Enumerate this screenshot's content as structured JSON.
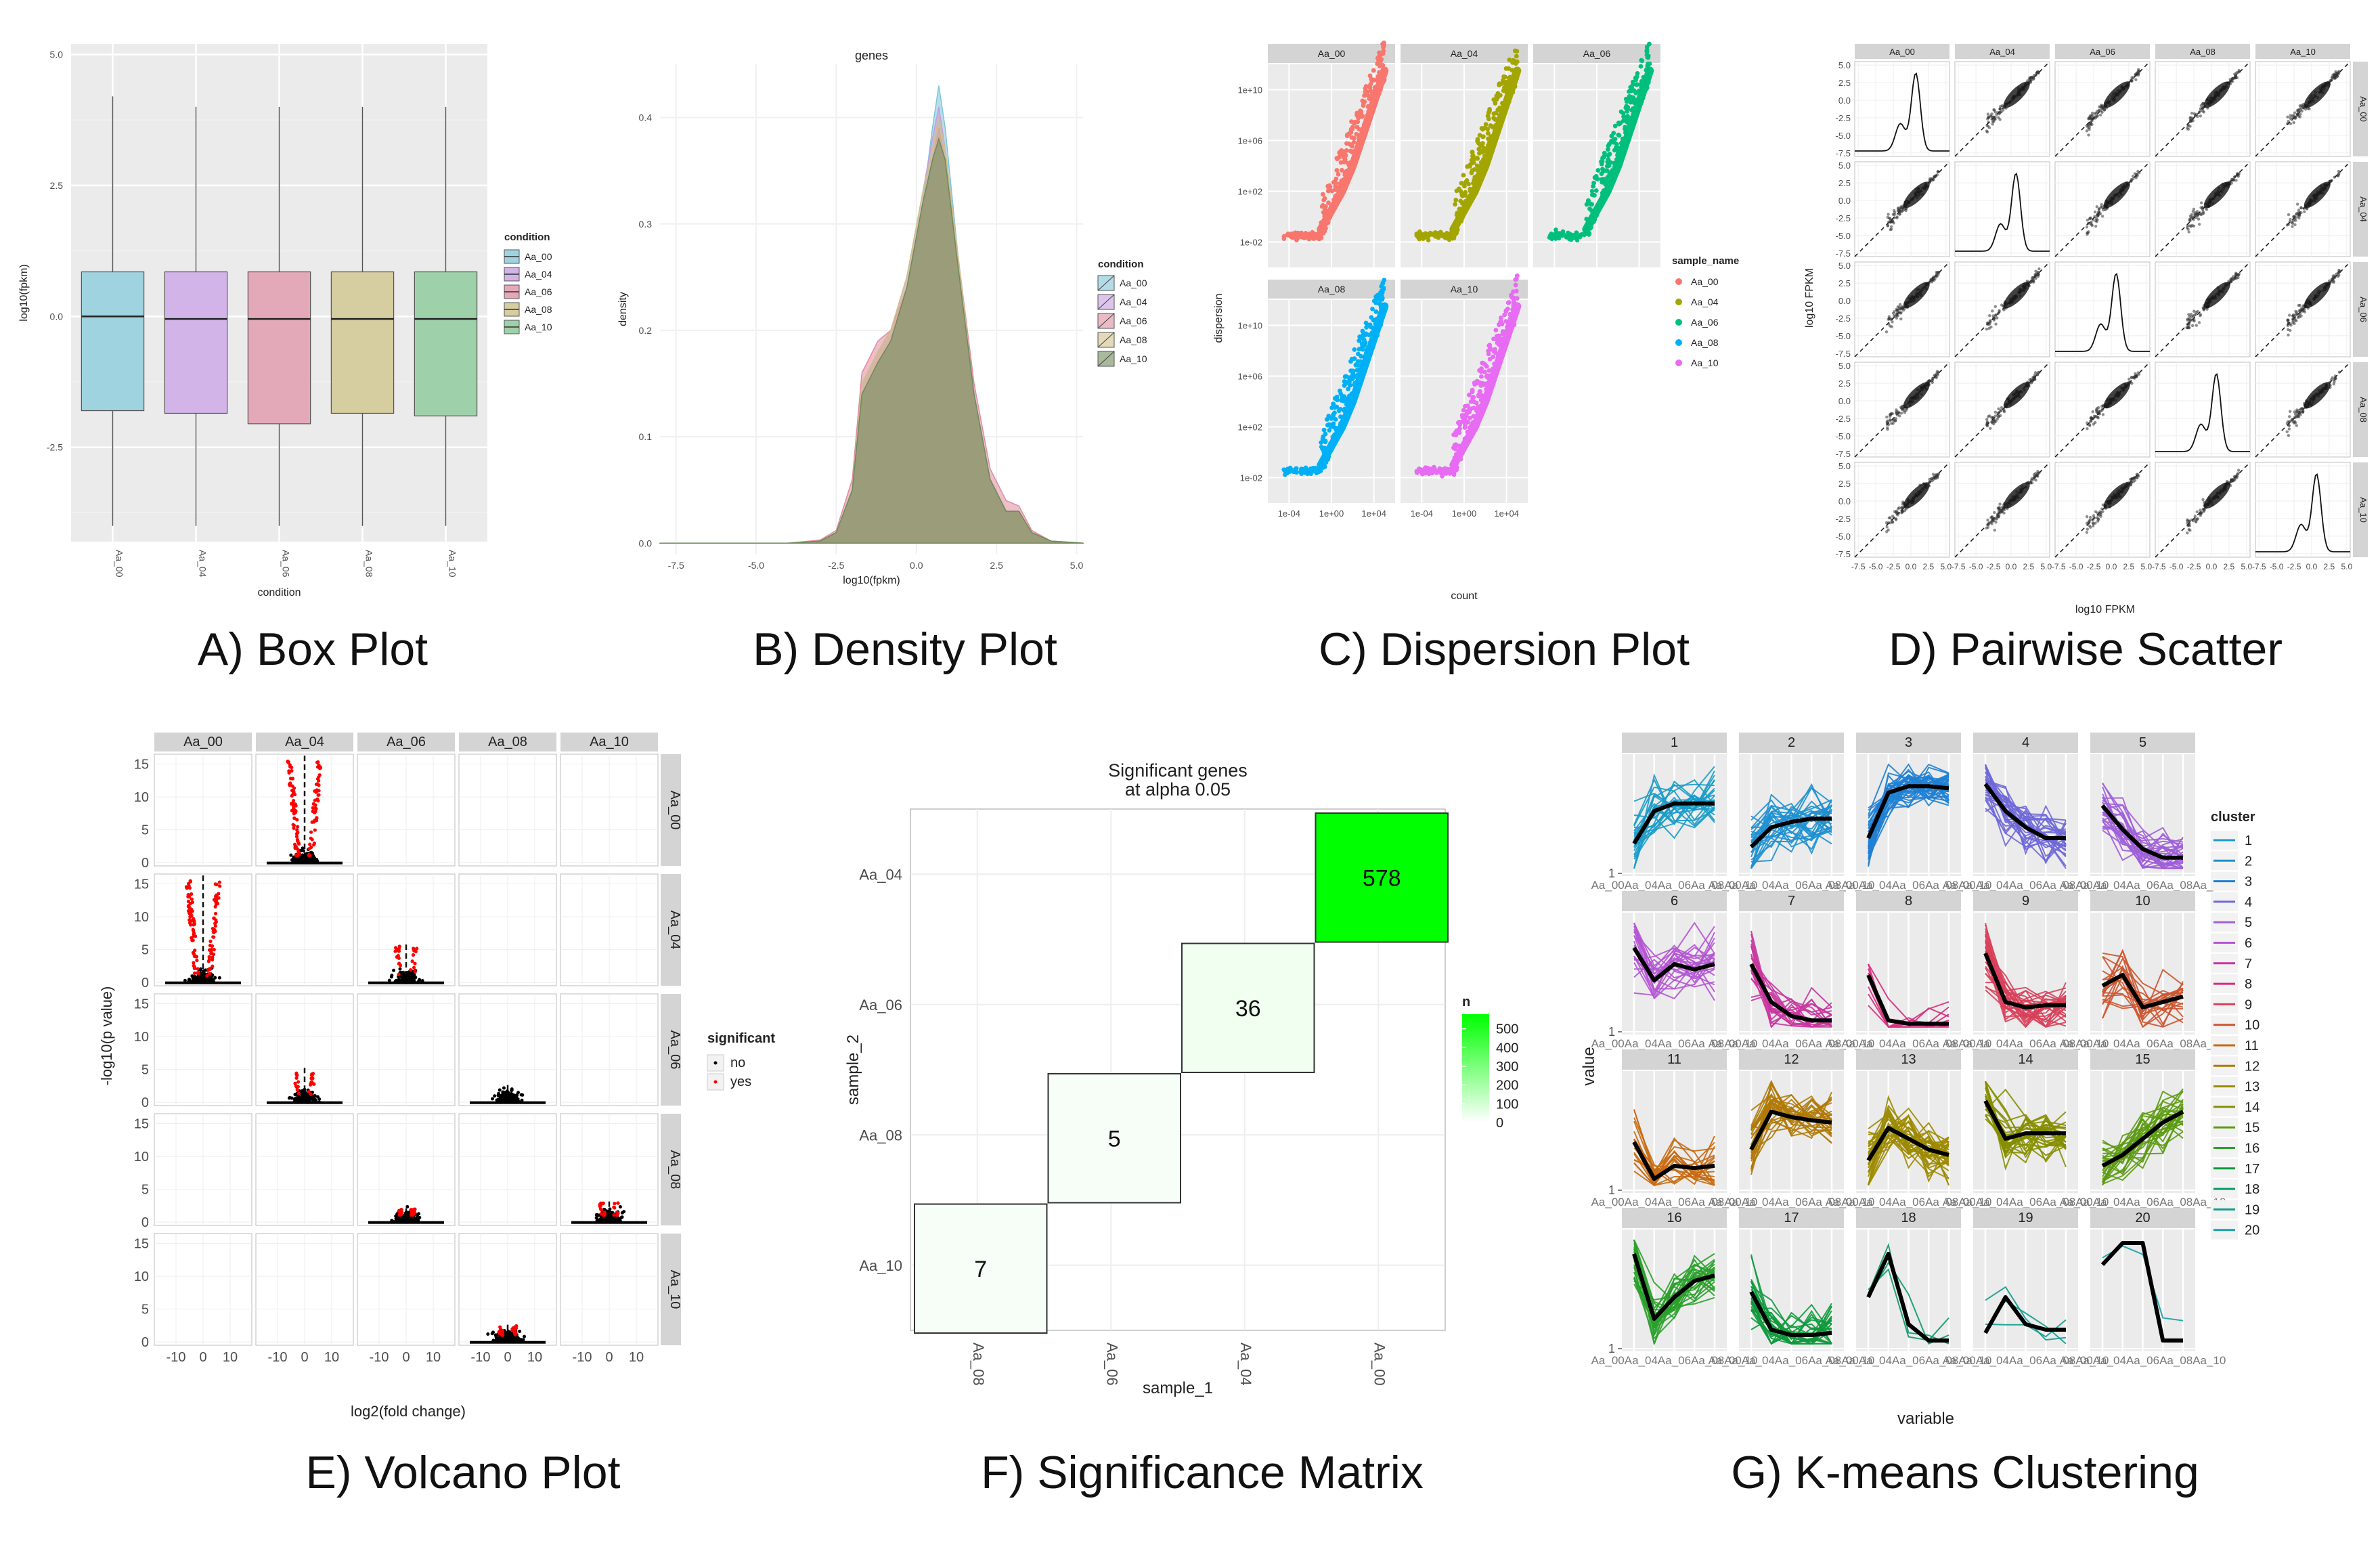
{
  "captions": {
    "a": "A) Box Plot",
    "b": "B) Density Plot",
    "c": "C) Dispersion Plot",
    "d": "D) Pairwise Scatter",
    "e": "E) Volcano Plot",
    "f": "F) Significance Matrix",
    "g": "G) K-means Clustering"
  },
  "colors": {
    "panel_bg": "#EBEBEB",
    "grid": "#FFFFFF",
    "strip_bg": "#D4D4D4",
    "Aa_00": "#F8766D",
    "Aa_04": "#A3A500",
    "Aa_06": "#00BF7D",
    "Aa_08": "#00B0F6",
    "Aa_10": "#E76BF3"
  },
  "chart_data": [
    {
      "id": "box",
      "type": "box",
      "xlabel": "condition",
      "ylabel": "log10(fpkm)",
      "categories": [
        "Aa_00",
        "Aa_04",
        "Aa_06",
        "Aa_08",
        "Aa_10"
      ],
      "yticks": [
        "-2.5",
        "0.0",
        "2.5",
        "5.0"
      ],
      "ylim": [
        -4.3,
        5.2
      ],
      "legend_title": "condition",
      "legend_position": "right",
      "fills": [
        "#9FD3DF",
        "#D2B4E8",
        "#E4A9B8",
        "#D6CDA0",
        "#9ED1A9"
      ],
      "boxes": [
        {
          "min": -4.0,
          "q1": -1.8,
          "median": 0.0,
          "q3": 0.85,
          "max": 4.2
        },
        {
          "min": -4.0,
          "q1": -1.85,
          "median": -0.05,
          "q3": 0.85,
          "max": 4.0
        },
        {
          "min": -4.0,
          "q1": -2.05,
          "median": -0.05,
          "q3": 0.85,
          "max": 4.0
        },
        {
          "min": -4.0,
          "q1": -1.85,
          "median": -0.05,
          "q3": 0.85,
          "max": 4.0
        },
        {
          "min": -4.0,
          "q1": -1.9,
          "median": -0.05,
          "q3": 0.85,
          "max": 4.0
        }
      ]
    },
    {
      "id": "density",
      "type": "area",
      "title": "genes",
      "xlabel": "log10(fpkm)",
      "ylabel": "density",
      "xticks": [
        "-7.5",
        "-5.0",
        "-2.5",
        "0.0",
        "2.5",
        "5.0"
      ],
      "yticks": [
        "0.0",
        "0.1",
        "0.2",
        "0.3",
        "0.4"
      ],
      "xlim": [
        -8,
        5.2
      ],
      "ylim": [
        -0.01,
        0.45
      ],
      "legend_title": "condition",
      "legend_position": "right",
      "series": [
        {
          "name": "Aa_00",
          "fill": "#7FC4D8",
          "x": [
            -8,
            -4,
            -3,
            -2.5,
            -2,
            -1.7,
            -1.2,
            -0.8,
            -0.3,
            0.2,
            0.5,
            0.7,
            0.9,
            1.3,
            1.8,
            2.3,
            2.8,
            3.2,
            3.6,
            4.2,
            5.2
          ],
          "y": [
            0,
            0,
            0.002,
            0.01,
            0.05,
            0.14,
            0.17,
            0.19,
            0.24,
            0.32,
            0.39,
            0.43,
            0.39,
            0.27,
            0.14,
            0.06,
            0.03,
            0.03,
            0.01,
            0.002,
            0
          ]
        },
        {
          "name": "Aa_04",
          "fill": "#C59CE0",
          "x": [
            -8,
            -4,
            -3,
            -2.5,
            -2,
            -1.7,
            -1.2,
            -0.8,
            -0.3,
            0.2,
            0.5,
            0.7,
            0.9,
            1.3,
            1.8,
            2.3,
            2.8,
            3.2,
            3.6,
            4.2,
            5.2
          ],
          "y": [
            0,
            0,
            0.002,
            0.01,
            0.05,
            0.15,
            0.18,
            0.2,
            0.25,
            0.33,
            0.38,
            0.41,
            0.37,
            0.27,
            0.14,
            0.06,
            0.03,
            0.03,
            0.01,
            0.002,
            0
          ]
        },
        {
          "name": "Aa_06",
          "fill": "#E08AA1",
          "x": [
            -8,
            -4,
            -3,
            -2.5,
            -2,
            -1.7,
            -1.2,
            -0.8,
            -0.3,
            0.2,
            0.5,
            0.7,
            0.9,
            1.3,
            1.8,
            2.3,
            2.8,
            3.2,
            3.6,
            4.2,
            5.2
          ],
          "y": [
            0,
            0,
            0.003,
            0.012,
            0.06,
            0.16,
            0.19,
            0.2,
            0.24,
            0.31,
            0.36,
            0.39,
            0.36,
            0.27,
            0.15,
            0.07,
            0.04,
            0.035,
            0.012,
            0.002,
            0
          ]
        },
        {
          "name": "Aa_08",
          "fill": "#CFC08A",
          "x": [
            -8,
            -4,
            -3,
            -2.5,
            -2,
            -1.7,
            -1.2,
            -0.8,
            -0.3,
            0.2,
            0.5,
            0.7,
            0.9,
            1.3,
            1.8,
            2.3,
            2.8,
            3.2,
            3.6,
            4.2,
            5.2
          ],
          "y": [
            0,
            0,
            0.002,
            0.01,
            0.05,
            0.15,
            0.18,
            0.2,
            0.25,
            0.33,
            0.37,
            0.4,
            0.37,
            0.27,
            0.14,
            0.06,
            0.03,
            0.03,
            0.01,
            0.002,
            0
          ]
        },
        {
          "name": "Aa_10",
          "fill": "#6E8A5A",
          "x": [
            -8,
            -4,
            -3,
            -2.5,
            -2,
            -1.7,
            -1.2,
            -0.8,
            -0.3,
            0.2,
            0.5,
            0.7,
            0.9,
            1.3,
            1.8,
            2.3,
            2.8,
            3.2,
            3.6,
            4.2,
            5.2
          ],
          "y": [
            0,
            0,
            0.002,
            0.01,
            0.05,
            0.14,
            0.17,
            0.19,
            0.24,
            0.32,
            0.36,
            0.38,
            0.36,
            0.26,
            0.14,
            0.06,
            0.03,
            0.03,
            0.01,
            0.002,
            0
          ]
        }
      ]
    },
    {
      "id": "dispersion",
      "type": "scatter",
      "xlabel": "count",
      "ylabel": "dispersion",
      "facets": [
        "Aa_00",
        "Aa_04",
        "Aa_06",
        "Aa_08",
        "Aa_10"
      ],
      "xticks": [
        "1e-04",
        "1e+00",
        "1e+04"
      ],
      "yticks": [
        "1e-02",
        "1e+02",
        "1e+06",
        "1e+10"
      ],
      "xlim": [
        -6,
        6
      ],
      "ylim": [
        -4,
        12
      ],
      "x_scale": "log10",
      "y_scale": "log10",
      "legend_title": "sample_name",
      "legend_position": "right",
      "series": [
        {
          "name": "Aa_00",
          "trend": {
            "x": [
              -1,
              0,
              1,
              2,
              3,
              4,
              5
            ],
            "y": [
              -1,
              0.5,
              2,
              4,
              6.5,
              9,
              11.5
            ]
          }
        },
        {
          "name": "Aa_04",
          "trend": {
            "x": [
              -1,
              0,
              1,
              2,
              3,
              4,
              5
            ],
            "y": [
              -1,
              0.5,
              2,
              4,
              6.5,
              9,
              11.5
            ]
          }
        },
        {
          "name": "Aa_06",
          "trend": {
            "x": [
              -1,
              0,
              1,
              2,
              3,
              4,
              5
            ],
            "y": [
              -1,
              0.5,
              2,
              4,
              6.5,
              9,
              11.5
            ]
          }
        },
        {
          "name": "Aa_08",
          "trend": {
            "x": [
              -1,
              0,
              1,
              2,
              3,
              4,
              5
            ],
            "y": [
              -1,
              0.5,
              2,
              4,
              6.5,
              9,
              11.5
            ]
          }
        },
        {
          "name": "Aa_10",
          "trend": {
            "x": [
              -1,
              0,
              1,
              2,
              3,
              4,
              5
            ],
            "y": [
              -1,
              0.5,
              2,
              4,
              6.5,
              9,
              11.5
            ]
          }
        }
      ]
    },
    {
      "id": "pairwise",
      "type": "scatter",
      "xlabel": "log10 FPKM",
      "ylabel": "log10 FPKM",
      "facets": [
        "Aa_00",
        "Aa_04",
        "Aa_06",
        "Aa_08",
        "Aa_10"
      ],
      "xticks": [
        "-7.5",
        "-5.0",
        "-2.5",
        "0.0",
        "2.5",
        "5.0"
      ],
      "yticks": [
        "-7.5",
        "-5.0",
        "-2.5",
        "0.0",
        "2.5",
        "5.0"
      ],
      "xlim": [
        -8,
        5.5
      ],
      "ylim": [
        -8,
        5.5
      ],
      "diagonal": "density",
      "reference_line": "y = x (dashed)"
    },
    {
      "id": "volcano",
      "type": "scatter",
      "xlabel": "log2(fold change)",
      "ylabel": "-log10(p value)",
      "facets": [
        "Aa_00",
        "Aa_04",
        "Aa_06",
        "Aa_08",
        "Aa_10"
      ],
      "xticks": [
        "-10",
        "0",
        "10"
      ],
      "yticks": [
        "0",
        "5",
        "10",
        "15"
      ],
      "xlim": [
        -18,
        18
      ],
      "ylim": [
        -0.5,
        16.5
      ],
      "legend_title": "significant",
      "legend_position": "right",
      "legend": [
        {
          "name": "no",
          "color": "#000000"
        },
        {
          "name": "yes",
          "color": "#FF0000"
        }
      ],
      "panels": [
        {
          "row": "Aa_00",
          "col": "Aa_04",
          "max_p": 15.5,
          "sig": true
        },
        {
          "row": "Aa_04",
          "col": "Aa_00",
          "max_p": 15.5,
          "sig": true
        },
        {
          "row": "Aa_04",
          "col": "Aa_06",
          "max_p": 5.5,
          "sig": true
        },
        {
          "row": "Aa_06",
          "col": "Aa_04",
          "max_p": 5,
          "sig": true
        },
        {
          "row": "Aa_06",
          "col": "Aa_08",
          "max_p": 2.5,
          "sig": false
        },
        {
          "row": "Aa_08",
          "col": "Aa_06",
          "max_p": 2,
          "sig": true
        },
        {
          "row": "Aa_08",
          "col": "Aa_10",
          "max_p": 3,
          "sig": true
        },
        {
          "row": "Aa_10",
          "col": "Aa_08",
          "max_p": 2.5,
          "sig": true
        }
      ]
    },
    {
      "id": "sigmatrix",
      "type": "heatmap",
      "title": "Significant genes\nat alpha 0.05",
      "xlabel": "sample_1",
      "ylabel": "sample_2",
      "x_categories": [
        "Aa_08",
        "Aa_06",
        "Aa_04",
        "Aa_00"
      ],
      "y_categories": [
        "Aa_10",
        "Aa_08",
        "Aa_06",
        "Aa_04"
      ],
      "cells": [
        {
          "x": "Aa_08",
          "y": "Aa_10",
          "n": 7
        },
        {
          "x": "Aa_06",
          "y": "Aa_08",
          "n": 5
        },
        {
          "x": "Aa_04",
          "y": "Aa_06",
          "n": 36
        },
        {
          "x": "Aa_00",
          "y": "Aa_04",
          "n": 578
        }
      ],
      "legend_title": "n",
      "legend_ticks": [
        "500",
        "400",
        "300",
        "200",
        "100",
        "0"
      ],
      "legend_range": [
        0,
        578
      ],
      "low_color": "#FFFFFF",
      "high_color": "#00FF00"
    },
    {
      "id": "kmeans",
      "type": "line",
      "xlabel": "variable",
      "ylabel": "value",
      "facets": [
        "1",
        "2",
        "3",
        "4",
        "5",
        "6",
        "7",
        "8",
        "9",
        "10",
        "11",
        "12",
        "13",
        "14",
        "15",
        "16",
        "17",
        "18",
        "19",
        "20"
      ],
      "xtick_text": "Aa_00Aa_04Aa_06Aa_08Aa_10",
      "ytick": "1",
      "legend_title": "cluster",
      "legend_position": "right",
      "series": [
        {
          "name": "1",
          "color": "#1A9BC8",
          "mean": [
            0.25,
            0.55,
            0.62,
            0.62,
            0.62
          ]
        },
        {
          "name": "2",
          "color": "#1E90D0",
          "mean": [
            0.22,
            0.4,
            0.45,
            0.48,
            0.48
          ]
        },
        {
          "name": "3",
          "color": "#1F7FD4",
          "mean": [
            0.3,
            0.72,
            0.78,
            0.78,
            0.76
          ]
        },
        {
          "name": "4",
          "color": "#6F68D8",
          "mean": [
            0.8,
            0.55,
            0.4,
            0.3,
            0.3
          ]
        },
        {
          "name": "5",
          "color": "#9E5ED8",
          "mean": [
            0.6,
            0.38,
            0.2,
            0.12,
            0.12
          ]
        },
        {
          "name": "6",
          "color": "#B455D4",
          "mean": [
            0.75,
            0.45,
            0.6,
            0.55,
            0.6
          ]
        },
        {
          "name": "7",
          "color": "#C9359E",
          "mean": [
            0.6,
            0.25,
            0.12,
            0.08,
            0.08
          ]
        },
        {
          "name": "8",
          "color": "#D62D7E",
          "mean": [
            0.5,
            0.08,
            0.05,
            0.05,
            0.05
          ]
        },
        {
          "name": "9",
          "color": "#D8405A",
          "mean": [
            0.7,
            0.25,
            0.2,
            0.22,
            0.22
          ]
        },
        {
          "name": "10",
          "color": "#CC5530",
          "mean": [
            0.4,
            0.5,
            0.2,
            0.25,
            0.3
          ]
        },
        {
          "name": "11",
          "color": "#C66A12",
          "mean": [
            0.42,
            0.08,
            0.2,
            0.18,
            0.2
          ]
        },
        {
          "name": "12",
          "color": "#B07A08",
          "mean": [
            0.35,
            0.7,
            0.65,
            0.62,
            0.6
          ]
        },
        {
          "name": "13",
          "color": "#9C8A00",
          "mean": [
            0.25,
            0.55,
            0.45,
            0.35,
            0.3
          ]
        },
        {
          "name": "14",
          "color": "#868E00",
          "mean": [
            0.8,
            0.45,
            0.5,
            0.5,
            0.5
          ]
        },
        {
          "name": "15",
          "color": "#5C9A12",
          "mean": [
            0.2,
            0.3,
            0.45,
            0.6,
            0.7
          ]
        },
        {
          "name": "16",
          "color": "#2AA02A",
          "mean": [
            0.85,
            0.25,
            0.45,
            0.6,
            0.65
          ]
        },
        {
          "name": "17",
          "color": "#0E9A3C",
          "mean": [
            0.5,
            0.15,
            0.1,
            0.1,
            0.12
          ]
        },
        {
          "name": "18",
          "color": "#0A9A6A",
          "mean": [
            0.45,
            0.85,
            0.2,
            0.05,
            0.05
          ]
        },
        {
          "name": "19",
          "color": "#0E9C8E",
          "mean": [
            0.12,
            0.45,
            0.2,
            0.15,
            0.15
          ]
        },
        {
          "name": "20",
          "color": "#1AA0A6",
          "mean": [
            0.75,
            0.95,
            0.95,
            0.05,
            0.05
          ]
        }
      ]
    }
  ]
}
